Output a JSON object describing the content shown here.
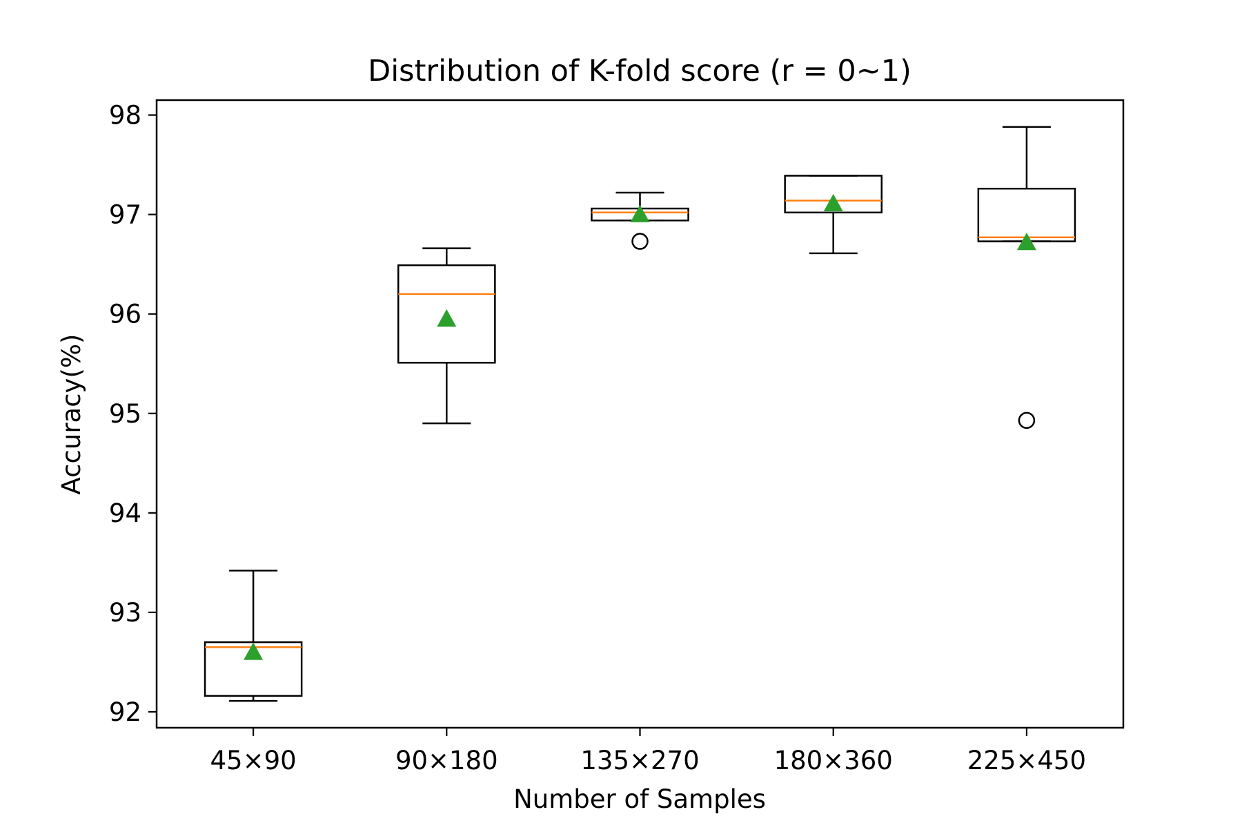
{
  "chart_data": {
    "type": "boxplot",
    "title": "Distribution of K-fold score (r = 0~1)",
    "xlabel": "Number of Samples",
    "ylabel": "Accuracy(%)",
    "ylim": [
      91.84,
      98.15
    ],
    "yticks": [
      92,
      93,
      94,
      95,
      96,
      97,
      98
    ],
    "categories": [
      "45×90",
      "90×180",
      "135×270",
      "180×360",
      "225×450"
    ],
    "boxes": [
      {
        "whisker_low": 92.11,
        "q1": 92.16,
        "median": 92.65,
        "q3": 92.7,
        "whisker_high": 93.42,
        "mean": 92.6,
        "outliers": []
      },
      {
        "whisker_low": 94.9,
        "q1": 95.51,
        "median": 96.2,
        "q3": 96.49,
        "whisker_high": 96.66,
        "mean": 95.95,
        "outliers": []
      },
      {
        "whisker_low": 96.94,
        "q1": 96.94,
        "median": 97.02,
        "q3": 97.06,
        "whisker_high": 97.22,
        "mean": 97.0,
        "outliers": [
          96.73
        ]
      },
      {
        "whisker_low": 96.61,
        "q1": 97.02,
        "median": 97.14,
        "q3": 97.39,
        "whisker_high": 97.39,
        "mean": 97.11,
        "outliers": []
      },
      {
        "whisker_low": 96.73,
        "q1": 96.73,
        "median": 96.77,
        "q3": 97.26,
        "whisker_high": 97.88,
        "mean": 96.72,
        "outliers": [
          94.93
        ]
      }
    ],
    "colors": {
      "box": "#000000",
      "median": "#ff7f0e",
      "mean": "#2ca02c",
      "outlier": "#000000"
    },
    "grid": false,
    "legend": "none"
  }
}
